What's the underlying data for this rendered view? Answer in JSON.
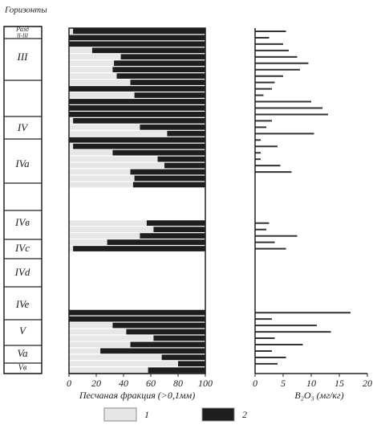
{
  "horizons": {
    "title": "Горизонты",
    "top_label": [
      "Разд",
      "II-III"
    ],
    "labels": [
      "III",
      "IV",
      "IVa",
      "IVв",
      "IVc",
      "IVd",
      "IVe",
      "V",
      "Va",
      "Vв"
    ]
  },
  "chart_data": [
    {
      "type": "stacked-hbar",
      "x_label": "Песчаная фракция (>0,1мм)",
      "categories": [
        null,
        null,
        null,
        null,
        null,
        null,
        null,
        null,
        null,
        null,
        null,
        null,
        null,
        null,
        null,
        null,
        null,
        null,
        null,
        null,
        null,
        null,
        null,
        null,
        null,
        null,
        null,
        null,
        null,
        null,
        null,
        null,
        null,
        null,
        null,
        null,
        null,
        null,
        null,
        null,
        null,
        null,
        null,
        null,
        null,
        null,
        null,
        null,
        null,
        null,
        null,
        null,
        null,
        null
      ],
      "series": [
        {
          "name": "1",
          "color": "#e6e6e6",
          "values": [
            3,
            0,
            0,
            17,
            38,
            33,
            32,
            35,
            45,
            0,
            48,
            0,
            0,
            0,
            3,
            52,
            72,
            0,
            3,
            32,
            65,
            70,
            45,
            48,
            47,
            null,
            null,
            null,
            null,
            null,
            57,
            62,
            52,
            28,
            3,
            null,
            null,
            null,
            null,
            null,
            null,
            null,
            null,
            null,
            0,
            0,
            32,
            42,
            62,
            45,
            23,
            68,
            80,
            58
          ]
        },
        {
          "name": "2",
          "color": "#1e1e1e",
          "values": [
            97,
            100,
            100,
            83,
            62,
            67,
            68,
            65,
            55,
            100,
            52,
            100,
            100,
            100,
            97,
            48,
            28,
            100,
            97,
            68,
            35,
            30,
            55,
            52,
            53,
            null,
            null,
            null,
            null,
            null,
            43,
            38,
            48,
            72,
            97,
            null,
            null,
            null,
            null,
            null,
            null,
            null,
            null,
            null,
            100,
            100,
            68,
            58,
            38,
            55,
            77,
            32,
            20,
            42
          ]
        }
      ],
      "xlim": [
        0,
        100
      ],
      "xticks": [
        0,
        20,
        40,
        60,
        80,
        100
      ]
    },
    {
      "type": "hbar",
      "x_label": "B₂O₃ (мг/кг)",
      "color": "#333333",
      "categories": [
        null,
        null,
        null,
        null,
        null,
        null,
        null,
        null,
        null,
        null,
        null,
        null,
        null,
        null,
        null,
        null,
        null,
        null,
        null,
        null,
        null,
        null,
        null,
        null,
        null,
        null,
        null,
        null,
        null,
        null,
        null,
        null,
        null,
        null,
        null,
        null,
        null,
        null,
        null,
        null,
        null,
        null,
        null,
        null,
        null,
        null,
        null,
        null,
        null,
        null,
        null,
        null,
        null,
        null
      ],
      "values": [
        5.5,
        2.5,
        5,
        6,
        7.5,
        9.5,
        8,
        5,
        3.5,
        3,
        1.5,
        10,
        12,
        13,
        3,
        2,
        10.5,
        1,
        4,
        1,
        1,
        4.5,
        6.5,
        null,
        null,
        null,
        null,
        null,
        null,
        null,
        2.5,
        2,
        7.5,
        3.5,
        5.5,
        null,
        null,
        null,
        null,
        null,
        null,
        null,
        null,
        null,
        17,
        3,
        11,
        13.5,
        3.5,
        8.5,
        3,
        5.5,
        4,
        null
      ],
      "xlim": [
        0,
        20
      ],
      "xticks": [
        0,
        5,
        10,
        15,
        20
      ]
    }
  ]
}
